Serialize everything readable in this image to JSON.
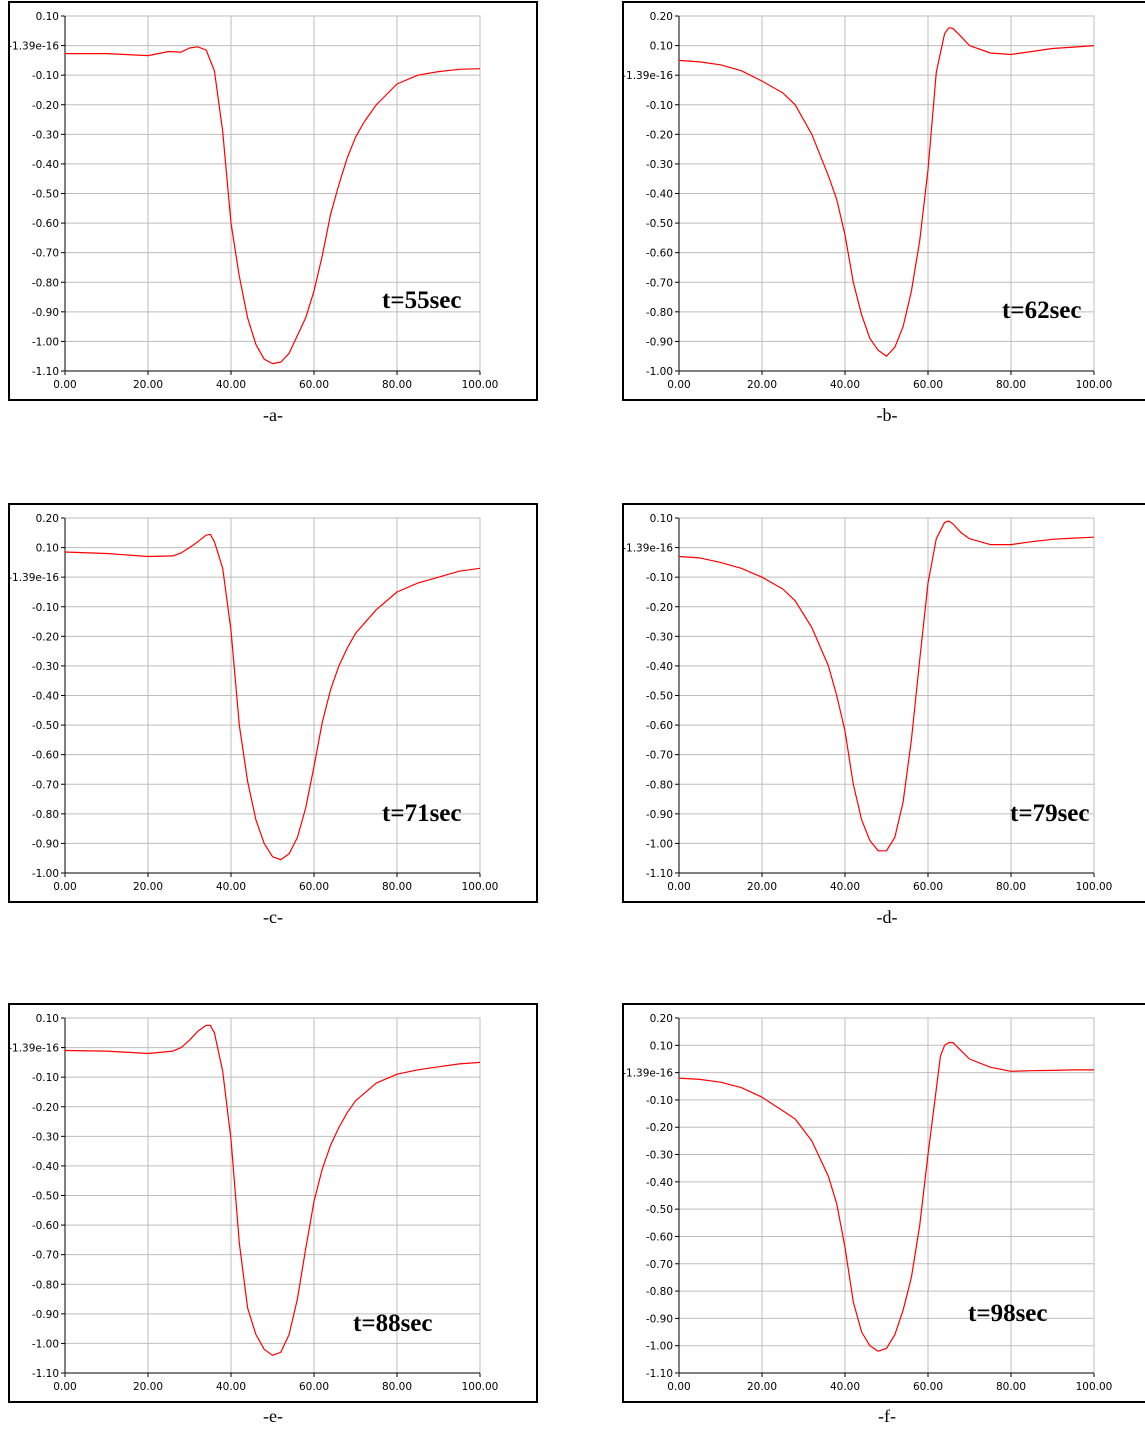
{
  "chart_data": [
    {
      "type": "line",
      "caption": "-a-",
      "annotation": "t=55sec",
      "xlim": [
        0,
        100
      ],
      "ylim": [
        -1.1,
        0.1
      ],
      "xticks": [
        "0.00",
        "20.00",
        "40.00",
        "60.00",
        "80.00",
        "100.00"
      ],
      "yticks": [
        {
          "v": 0.1,
          "label": "0.10"
        },
        {
          "v": 0.0,
          "label": "-1.39e-16"
        },
        {
          "v": -0.1,
          "label": "-0.10"
        },
        {
          "v": -0.2,
          "label": "-0.20"
        },
        {
          "v": -0.3,
          "label": "-0.30"
        },
        {
          "v": -0.4,
          "label": "-0.40"
        },
        {
          "v": -0.5,
          "label": "-0.50"
        },
        {
          "v": -0.6,
          "label": "-0.60"
        },
        {
          "v": -0.7,
          "label": "-0.70"
        },
        {
          "v": -0.8,
          "label": "-0.80"
        },
        {
          "v": -0.9,
          "label": "-0.90"
        },
        {
          "v": -1.0,
          "label": "-1.00"
        },
        {
          "v": -1.1,
          "label": "-1.10"
        }
      ],
      "grid": true,
      "line_color": "#ff0000",
      "x": [
        0,
        10,
        20,
        25,
        28,
        30,
        32,
        34,
        36,
        38,
        40,
        42,
        44,
        46,
        48,
        50,
        52,
        54,
        56,
        58,
        60,
        62,
        64,
        66,
        68,
        70,
        72,
        75,
        80,
        85,
        90,
        95,
        100
      ],
      "y": [
        -0.027,
        -0.027,
        -0.034,
        -0.02,
        -0.022,
        -0.008,
        -0.004,
        -0.015,
        -0.085,
        -0.29,
        -0.6,
        -0.78,
        -0.92,
        -1.01,
        -1.06,
        -1.075,
        -1.07,
        -1.04,
        -0.98,
        -0.92,
        -0.83,
        -0.71,
        -0.57,
        -0.47,
        -0.38,
        -0.31,
        -0.26,
        -0.2,
        -0.13,
        -0.1,
        -0.088,
        -0.08,
        -0.078
      ]
    },
    {
      "type": "line",
      "caption": "-b-",
      "annotation": "t=62sec",
      "xlim": [
        0,
        100
      ],
      "ylim": [
        -1.0,
        0.2
      ],
      "xticks": [
        "0.00",
        "20.00",
        "40.00",
        "60.00",
        "80.00",
        "100.00"
      ],
      "yticks": [
        {
          "v": 0.2,
          "label": "0.20"
        },
        {
          "v": 0.1,
          "label": "0.10"
        },
        {
          "v": 0.0,
          "label": "-1.39e-16"
        },
        {
          "v": -0.1,
          "label": "-0.10"
        },
        {
          "v": -0.2,
          "label": "-0.20"
        },
        {
          "v": -0.3,
          "label": "-0.30"
        },
        {
          "v": -0.4,
          "label": "-0.40"
        },
        {
          "v": -0.5,
          "label": "-0.50"
        },
        {
          "v": -0.6,
          "label": "-0.60"
        },
        {
          "v": -0.7,
          "label": "-0.70"
        },
        {
          "v": -0.8,
          "label": "-0.80"
        },
        {
          "v": -0.9,
          "label": "-0.90"
        },
        {
          "v": -1.0,
          "label": "-1.00"
        }
      ],
      "grid": true,
      "line_color": "#ff0000",
      "x": [
        0,
        5,
        10,
        15,
        20,
        25,
        28,
        32,
        36,
        38,
        40,
        42,
        44,
        46,
        48,
        50,
        52,
        54,
        56,
        58,
        60,
        62,
        64,
        65,
        66,
        68,
        70,
        75,
        80,
        85,
        90,
        95,
        100
      ],
      "y": [
        0.05,
        0.045,
        0.035,
        0.015,
        -0.02,
        -0.06,
        -0.1,
        -0.2,
        -0.34,
        -0.42,
        -0.54,
        -0.7,
        -0.81,
        -0.89,
        -0.93,
        -0.95,
        -0.92,
        -0.85,
        -0.73,
        -0.56,
        -0.32,
        0.01,
        0.14,
        0.16,
        0.158,
        0.13,
        0.1,
        0.075,
        0.07,
        0.08,
        0.09,
        0.095,
        0.1
      ]
    },
    {
      "type": "line",
      "caption": "-c-",
      "annotation": "t=71sec",
      "xlim": [
        0,
        100
      ],
      "ylim": [
        -1.0,
        0.2
      ],
      "xticks": [
        "0.00",
        "20.00",
        "40.00",
        "60.00",
        "80.00",
        "100.00"
      ],
      "yticks": [
        {
          "v": 0.2,
          "label": "0.20"
        },
        {
          "v": 0.1,
          "label": "0.10"
        },
        {
          "v": 0.0,
          "label": "-1.39e-16"
        },
        {
          "v": -0.1,
          "label": "-0.10"
        },
        {
          "v": -0.2,
          "label": "-0.20"
        },
        {
          "v": -0.3,
          "label": "-0.30"
        },
        {
          "v": -0.4,
          "label": "-0.40"
        },
        {
          "v": -0.5,
          "label": "-0.50"
        },
        {
          "v": -0.6,
          "label": "-0.60"
        },
        {
          "v": -0.7,
          "label": "-0.70"
        },
        {
          "v": -0.8,
          "label": "-0.80"
        },
        {
          "v": -0.9,
          "label": "-0.90"
        },
        {
          "v": -1.0,
          "label": "-1.00"
        }
      ],
      "grid": true,
      "line_color": "#ff0000",
      "x": [
        0,
        10,
        20,
        26,
        28,
        30,
        32,
        34,
        35,
        36,
        38,
        40,
        42,
        44,
        46,
        48,
        50,
        52,
        54,
        56,
        58,
        60,
        62,
        64,
        66,
        68,
        70,
        75,
        80,
        85,
        90,
        95,
        100
      ],
      "y": [
        0.085,
        0.08,
        0.07,
        0.072,
        0.082,
        0.1,
        0.12,
        0.142,
        0.145,
        0.12,
        0.03,
        -0.18,
        -0.5,
        -0.69,
        -0.82,
        -0.9,
        -0.945,
        -0.955,
        -0.935,
        -0.88,
        -0.78,
        -0.64,
        -0.49,
        -0.38,
        -0.3,
        -0.24,
        -0.19,
        -0.11,
        -0.05,
        -0.02,
        0.0,
        0.02,
        0.03
      ]
    },
    {
      "type": "line",
      "caption": "-d-",
      "annotation": "t=79sec",
      "xlim": [
        0,
        100
      ],
      "ylim": [
        -1.1,
        0.1
      ],
      "xticks": [
        "0.00",
        "20.00",
        "40.00",
        "60.00",
        "80.00",
        "100.00"
      ],
      "yticks": [
        {
          "v": 0.1,
          "label": "0.10"
        },
        {
          "v": 0.0,
          "label": "-1.39e-16"
        },
        {
          "v": -0.1,
          "label": "-0.10"
        },
        {
          "v": -0.2,
          "label": "-0.20"
        },
        {
          "v": -0.3,
          "label": "-0.30"
        },
        {
          "v": -0.4,
          "label": "-0.40"
        },
        {
          "v": -0.5,
          "label": "-0.50"
        },
        {
          "v": -0.6,
          "label": "-0.60"
        },
        {
          "v": -0.7,
          "label": "-0.70"
        },
        {
          "v": -0.8,
          "label": "-0.80"
        },
        {
          "v": -0.9,
          "label": "-0.90"
        },
        {
          "v": -1.0,
          "label": "-1.00"
        },
        {
          "v": -1.1,
          "label": "-1.10"
        }
      ],
      "grid": true,
      "line_color": "#ff0000",
      "x": [
        0,
        5,
        10,
        15,
        20,
        25,
        28,
        32,
        36,
        38,
        40,
        42,
        44,
        46,
        48,
        50,
        52,
        54,
        56,
        58,
        60,
        62,
        64,
        65,
        66,
        68,
        70,
        75,
        80,
        85,
        90,
        95,
        100
      ],
      "y": [
        -0.03,
        -0.035,
        -0.05,
        -0.07,
        -0.1,
        -0.14,
        -0.18,
        -0.27,
        -0.4,
        -0.5,
        -0.62,
        -0.8,
        -0.92,
        -0.99,
        -1.025,
        -1.025,
        -0.98,
        -0.86,
        -0.65,
        -0.38,
        -0.12,
        0.03,
        0.085,
        0.09,
        0.08,
        0.05,
        0.03,
        0.01,
        0.01,
        0.02,
        0.028,
        0.032,
        0.035
      ]
    },
    {
      "type": "line",
      "caption": "-e-",
      "annotation": "t=88sec",
      "xlim": [
        0,
        100
      ],
      "ylim": [
        -1.1,
        0.1
      ],
      "xticks": [
        "0.00",
        "20.00",
        "40.00",
        "60.00",
        "80.00",
        "100.00"
      ],
      "yticks": [
        {
          "v": 0.1,
          "label": "0.10"
        },
        {
          "v": 0.0,
          "label": "-1.39e-16"
        },
        {
          "v": -0.1,
          "label": "-0.10"
        },
        {
          "v": -0.2,
          "label": "-0.20"
        },
        {
          "v": -0.3,
          "label": "-0.30"
        },
        {
          "v": -0.4,
          "label": "-0.40"
        },
        {
          "v": -0.5,
          "label": "-0.50"
        },
        {
          "v": -0.6,
          "label": "-0.60"
        },
        {
          "v": -0.7,
          "label": "-0.70"
        },
        {
          "v": -0.8,
          "label": "-0.80"
        },
        {
          "v": -0.9,
          "label": "-0.90"
        },
        {
          "v": -1.0,
          "label": "-1.00"
        },
        {
          "v": -1.1,
          "label": "-1.10"
        }
      ],
      "grid": true,
      "line_color": "#ff0000",
      "x": [
        0,
        10,
        20,
        26,
        28,
        30,
        32,
        34,
        35,
        36,
        38,
        40,
        42,
        44,
        46,
        48,
        50,
        52,
        54,
        56,
        58,
        60,
        62,
        64,
        66,
        68,
        70,
        75,
        80,
        85,
        90,
        95,
        100
      ],
      "y": [
        -0.01,
        -0.012,
        -0.02,
        -0.012,
        0.0,
        0.025,
        0.055,
        0.075,
        0.075,
        0.05,
        -0.08,
        -0.31,
        -0.66,
        -0.88,
        -0.97,
        -1.02,
        -1.04,
        -1.03,
        -0.97,
        -0.85,
        -0.68,
        -0.52,
        -0.41,
        -0.33,
        -0.27,
        -0.22,
        -0.18,
        -0.12,
        -0.09,
        -0.075,
        -0.065,
        -0.055,
        -0.05
      ]
    },
    {
      "type": "line",
      "caption": "-f-",
      "annotation": "t=98sec",
      "xlim": [
        0,
        100
      ],
      "ylim": [
        -1.1,
        0.2
      ],
      "xticks": [
        "0.00",
        "20.00",
        "40.00",
        "60.00",
        "80.00",
        "100.00"
      ],
      "yticks": [
        {
          "v": 0.2,
          "label": "0.20"
        },
        {
          "v": 0.1,
          "label": "0.10"
        },
        {
          "v": 0.0,
          "label": "-1.39e-16"
        },
        {
          "v": -0.1,
          "label": "-0.10"
        },
        {
          "v": -0.2,
          "label": "-0.20"
        },
        {
          "v": -0.3,
          "label": "-0.30"
        },
        {
          "v": -0.4,
          "label": "-0.40"
        },
        {
          "v": -0.5,
          "label": "-0.50"
        },
        {
          "v": -0.6,
          "label": "-0.60"
        },
        {
          "v": -0.7,
          "label": "-0.70"
        },
        {
          "v": -0.8,
          "label": "-0.80"
        },
        {
          "v": -0.9,
          "label": "-0.90"
        },
        {
          "v": -1.0,
          "label": "-1.00"
        },
        {
          "v": -1.1,
          "label": "-1.10"
        }
      ],
      "grid": true,
      "line_color": "#ff0000",
      "x": [
        0,
        5,
        10,
        15,
        20,
        25,
        28,
        32,
        36,
        38,
        40,
        42,
        44,
        46,
        48,
        50,
        52,
        54,
        56,
        58,
        60,
        62,
        63,
        64,
        65,
        66,
        68,
        70,
        75,
        80,
        85,
        90,
        95,
        100
      ],
      "y": [
        -0.02,
        -0.025,
        -0.035,
        -0.055,
        -0.09,
        -0.14,
        -0.17,
        -0.25,
        -0.38,
        -0.48,
        -0.64,
        -0.84,
        -0.95,
        -1.0,
        -1.02,
        -1.01,
        -0.96,
        -0.87,
        -0.75,
        -0.56,
        -0.3,
        -0.06,
        0.06,
        0.1,
        0.11,
        0.11,
        0.08,
        0.05,
        0.02,
        0.005,
        0.007,
        0.008,
        0.01,
        0.01
      ]
    }
  ]
}
